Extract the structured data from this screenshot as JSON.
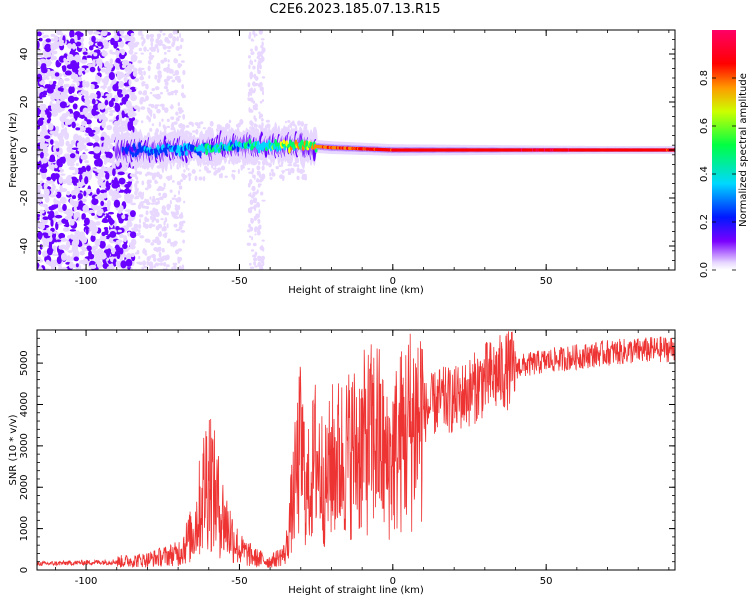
{
  "title": "C2E6.2023.185.07.13.R15",
  "colors": {
    "snr_line": "#ee3333",
    "colormap": [
      "#e8d8ff",
      "#6a00ff",
      "#0033ff",
      "#00d8ff",
      "#00ff66",
      "#ffff00",
      "#ff8800",
      "#ff0000",
      "#ff0066"
    ]
  },
  "chart_data": [
    {
      "type": "heatmap",
      "name": "spectrogram",
      "xlabel": "Height of straight line (km)",
      "ylabel": "Frequency (Hz)",
      "xlim": [
        -116,
        92
      ],
      "ylim": [
        -50,
        50
      ],
      "x_ticks": [
        -100,
        -50,
        0,
        50
      ],
      "x_tick_labels": [
        "-100",
        "-50",
        "0",
        "50"
      ],
      "y_ticks": [
        -40,
        -20,
        0,
        20,
        40
      ],
      "y_tick_labels": [
        "-40",
        "-20",
        "0",
        "20",
        "40"
      ],
      "colorbar": {
        "label": "Normalized spectral amplitude",
        "range": [
          0,
          1
        ],
        "ticks": [
          0.0,
          0.2,
          0.4,
          0.6,
          0.8
        ],
        "tick_labels": [
          "0.0",
          "0.2",
          "0.4",
          "0.6",
          "0.8"
        ]
      },
      "ridge": [
        {
          "x": -90,
          "freq": 0,
          "amp": 0.15
        },
        {
          "x": -80,
          "freq": 0,
          "amp": 0.35
        },
        {
          "x": -70,
          "freq": 0,
          "amp": 0.4
        },
        {
          "x": -60,
          "freq": 1,
          "amp": 0.45
        },
        {
          "x": -50,
          "freq": 2,
          "amp": 0.5
        },
        {
          "x": -40,
          "freq": 2,
          "amp": 0.55
        },
        {
          "x": -30,
          "freq": 2,
          "amp": 0.75
        },
        {
          "x": -20,
          "freq": 1,
          "amp": 0.85
        },
        {
          "x": 0,
          "freq": 0,
          "amp": 0.9
        },
        {
          "x": 50,
          "freq": 0,
          "amp": 0.95
        },
        {
          "x": 90,
          "freq": 0,
          "amp": 0.9
        }
      ]
    },
    {
      "type": "line",
      "name": "snr",
      "xlabel": "Height of straight line (km)",
      "ylabel": "SNR (10 * v/v)",
      "xlim": [
        -116,
        92
      ],
      "ylim": [
        0,
        5800
      ],
      "x_ticks": [
        -100,
        -50,
        0,
        50
      ],
      "x_tick_labels": [
        "-100",
        "-50",
        "0",
        "50"
      ],
      "y_ticks": [
        0,
        1000,
        2000,
        3000,
        4000,
        5000
      ],
      "y_tick_labels": [
        "0",
        "1000",
        "2000",
        "3000",
        "4000",
        "5000"
      ],
      "series": [
        {
          "name": "SNR",
          "x": [
            -116,
            -110,
            -100,
            -90,
            -80,
            -70,
            -65,
            -62,
            -60,
            -58,
            -55,
            -50,
            -45,
            -40,
            -35,
            -32,
            -30,
            -28,
            -25,
            -22,
            -20,
            -15,
            -10,
            -5,
            -2,
            0,
            5,
            10,
            15,
            20,
            25,
            30,
            40,
            50,
            60,
            70,
            80,
            92
          ],
          "y": [
            150,
            160,
            180,
            200,
            250,
            400,
            900,
            1800,
            2500,
            1800,
            1200,
            500,
            300,
            200,
            400,
            2000,
            3000,
            1800,
            2800,
            2000,
            2600,
            2800,
            3000,
            3300,
            2500,
            2800,
            3400,
            3800,
            4100,
            4100,
            4300,
            4600,
            4900,
            5050,
            5150,
            5250,
            5300,
            5350
          ]
        }
      ]
    }
  ]
}
